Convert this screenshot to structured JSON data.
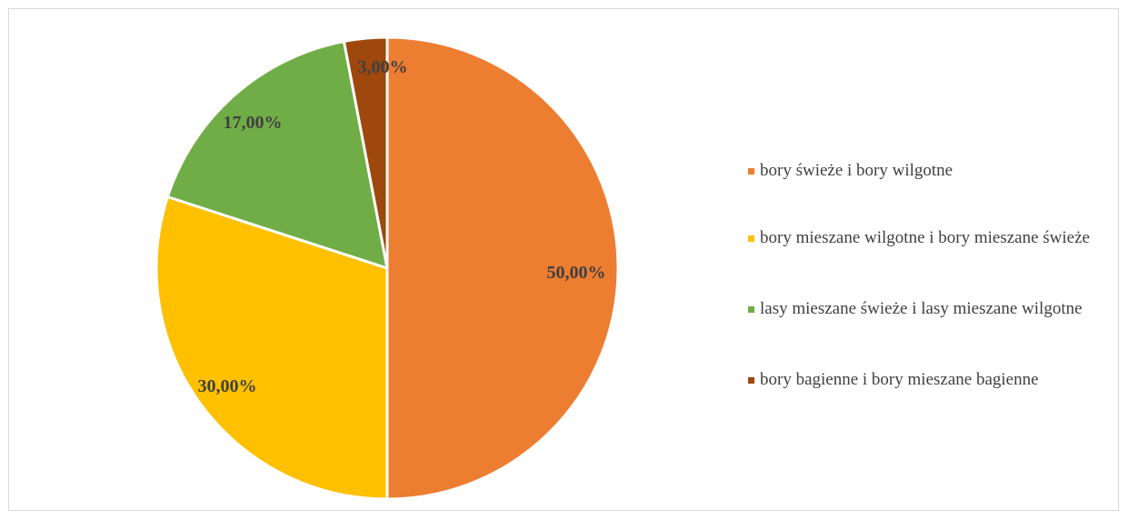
{
  "chart_data": {
    "type": "pie",
    "title": "",
    "start_angle_deg": 0,
    "direction": "clockwise",
    "legend_position": "right",
    "slices": [
      {
        "label": "bory świeże i bory wilgotne",
        "value": 50.0,
        "display": "50,00%",
        "color": "#ED7D31"
      },
      {
        "label": "bory mieszane wilgotne i bory mieszane świeże",
        "value": 30.0,
        "display": "30,00%",
        "color": "#FFC000"
      },
      {
        "label": "lasy mieszane świeże i lasy mieszane wilgotne",
        "value": 17.0,
        "display": "17,00%",
        "color": "#70AD47"
      },
      {
        "label": "bory bagienne i bory mieszane bagienne",
        "value": 3.0,
        "display": "3,00%",
        "color": "#9E480E"
      }
    ],
    "label_color": "#404040"
  }
}
